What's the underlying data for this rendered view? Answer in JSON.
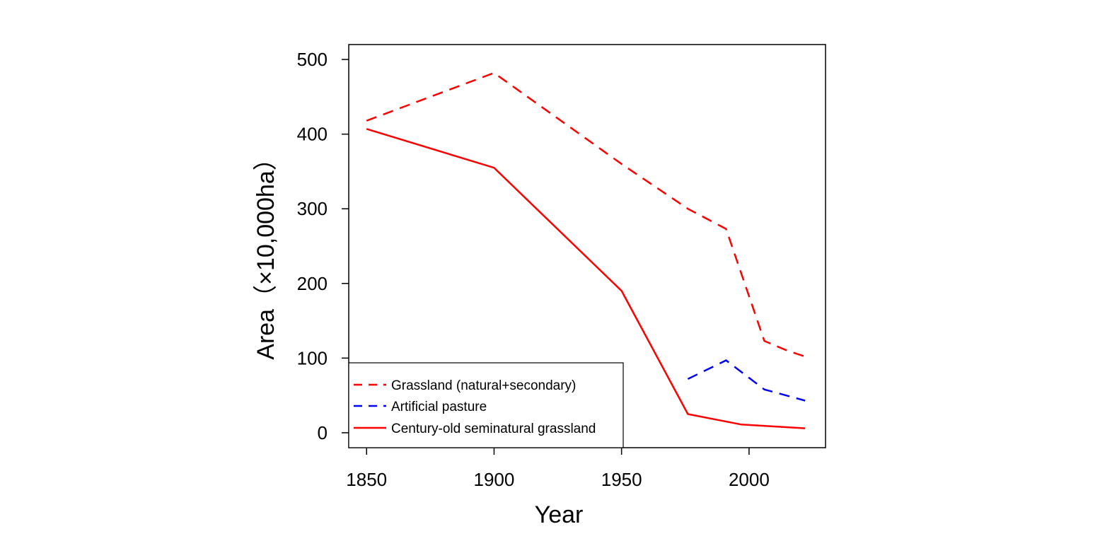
{
  "chart_data": {
    "type": "line",
    "title": "",
    "xlabel": "Year",
    "ylabel": "Area（×10,000ha）",
    "xlim": [
      1843,
      2030
    ],
    "ylim": [
      -20,
      520
    ],
    "xticks": [
      1850,
      1900,
      1950,
      2000
    ],
    "yticks": [
      0,
      100,
      200,
      300,
      400,
      500
    ],
    "grid": false,
    "legend_position": "bottom-left",
    "series": [
      {
        "name": "Grassland (natural+secondary)",
        "color": "#ff0000",
        "style": "dashed",
        "x": [
          1850,
          1900,
          1950,
          1976,
          1991,
          2006,
          2015,
          2022
        ],
        "y": [
          418,
          482,
          360,
          300,
          273,
          123,
          110,
          102
        ]
      },
      {
        "name": "Artificial pasture",
        "color": "#0000ff",
        "style": "dashed",
        "x": [
          1976,
          1991,
          2006,
          2022
        ],
        "y": [
          72,
          97,
          58,
          43
        ]
      },
      {
        "name": "Century-old seminatural grassland",
        "color": "#ff0000",
        "style": "solid",
        "x": [
          1850,
          1900,
          1950,
          1976,
          1997,
          2022
        ],
        "y": [
          407,
          355,
          190,
          25,
          11,
          6
        ]
      }
    ]
  }
}
